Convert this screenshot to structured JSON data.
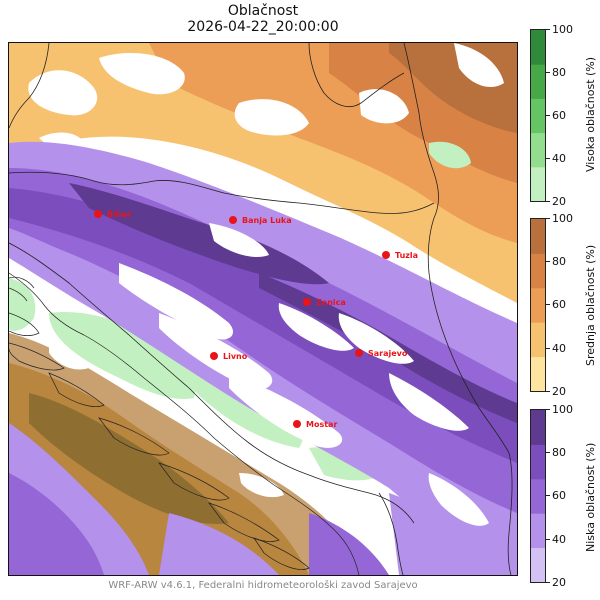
{
  "title": "Oblačnost",
  "datetime": "2026-04-22_20:00:00",
  "footer": "WRF-ARW v4.6.1, Federalni hidrometeorološki zavod Sarajevo",
  "cities": [
    {
      "name": "Bihać"
    },
    {
      "name": "Banja Luka"
    },
    {
      "name": "Tuzla"
    },
    {
      "name": "Zenica"
    },
    {
      "name": "Livno"
    },
    {
      "name": "Sarajevo"
    },
    {
      "name": "Mostar"
    }
  ],
  "colorbars": [
    {
      "id": "visoka",
      "label": "Visoka oblačnost (%)",
      "ticks": [
        "100",
        "80",
        "60",
        "40",
        "20"
      ],
      "colors": [
        "#c3f0c0",
        "#93dd8e",
        "#65c463",
        "#47a848",
        "#2f8b3a"
      ]
    },
    {
      "id": "srednja",
      "label": "Srednja oblačnost (%)",
      "ticks": [
        "100",
        "80",
        "60",
        "40",
        "20"
      ],
      "colors": [
        "#fde5a0",
        "#f7c270",
        "#ec9e56",
        "#d98246",
        "#b8703d"
      ]
    },
    {
      "id": "niska",
      "label": "Niska oblačnost (%)",
      "ticks": [
        "100",
        "80",
        "60",
        "40",
        "20"
      ],
      "colors": [
        "#d5c2f5",
        "#b491ea",
        "#9466d6",
        "#7b4dbd",
        "#5e3a90"
      ]
    }
  ],
  "city_color": "#e8141a"
}
